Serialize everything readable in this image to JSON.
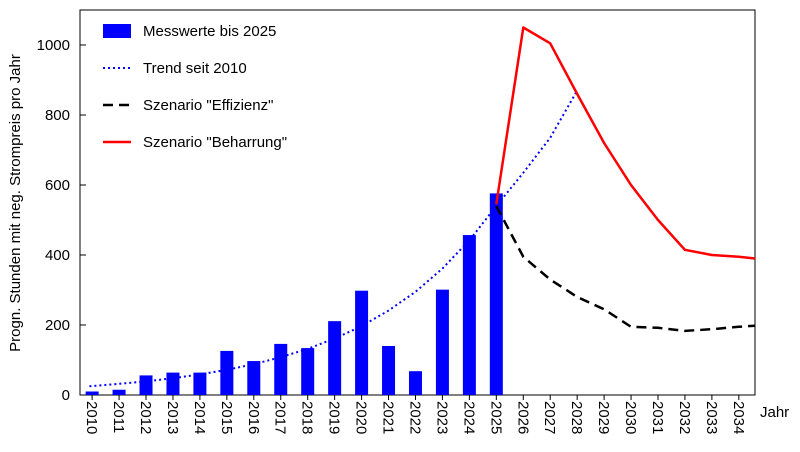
{
  "chart_data": {
    "type": "bar",
    "ylabel": "Progn. Stunden mit neg. Strompreis pro Jahr",
    "xlabel": "Jahr",
    "ylim": [
      0,
      1100
    ],
    "yticks": [
      0,
      200,
      400,
      600,
      800,
      1000
    ],
    "grid": false,
    "legend_position": "top-left",
    "x_tick_labels": [
      "2010",
      "2011",
      "2012",
      "2013",
      "2014",
      "2015",
      "2016",
      "2017",
      "2018",
      "2019",
      "2020",
      "2021",
      "2022",
      "2023",
      "2024",
      "2025",
      "2026",
      "2027",
      "2028",
      "2029",
      "2030",
      "2031",
      "2032",
      "2033",
      "2034"
    ],
    "x_range": [
      2009.55,
      2034.6
    ],
    "series": [
      {
        "name": "Messwerte bis 2025",
        "kind": "bar",
        "color": "#0000ff",
        "x": [
          2010,
          2011,
          2012,
          2013,
          2014,
          2015,
          2016,
          2017,
          2018,
          2019,
          2020,
          2021,
          2022,
          2023,
          2024,
          2025
        ],
        "values": [
          10,
          15,
          56,
          64,
          64,
          126,
          97,
          146,
          134,
          211,
          298,
          140,
          68,
          301,
          457,
          576
        ]
      },
      {
        "name": "Trend seit 2010",
        "kind": "line",
        "style": "dotted",
        "color": "#0000ff",
        "x": [
          2009.9,
          2011,
          2012,
          2013,
          2014,
          2015,
          2016,
          2017,
          2018,
          2019,
          2020,
          2021,
          2022,
          2023,
          2024,
          2025,
          2026,
          2027,
          2028
        ],
        "values": [
          25,
          32,
          39,
          48,
          59,
          72,
          88,
          108,
          132,
          161,
          197,
          241,
          295,
          361,
          442,
          540,
          635,
          735,
          870
        ]
      },
      {
        "name": "Szenario \"Effizienz\"",
        "kind": "line",
        "style": "dashed",
        "color": "#000000",
        "x": [
          2025,
          2026,
          2027,
          2028,
          2029,
          2030,
          2031,
          2032,
          2033,
          2034,
          2034.6
        ],
        "values": [
          540,
          395,
          330,
          280,
          245,
          195,
          192,
          183,
          188,
          195,
          198
        ]
      },
      {
        "name": "Szenario \"Beharrung\"",
        "kind": "line",
        "style": "solid",
        "color": "#ff0000",
        "x": [
          2025,
          2026,
          2027,
          2028,
          2029,
          2030,
          2031,
          2032,
          2033,
          2034,
          2034.6
        ],
        "values": [
          545,
          1050,
          1005,
          860,
          720,
          600,
          500,
          415,
          400,
          395,
          390
        ]
      }
    ]
  }
}
